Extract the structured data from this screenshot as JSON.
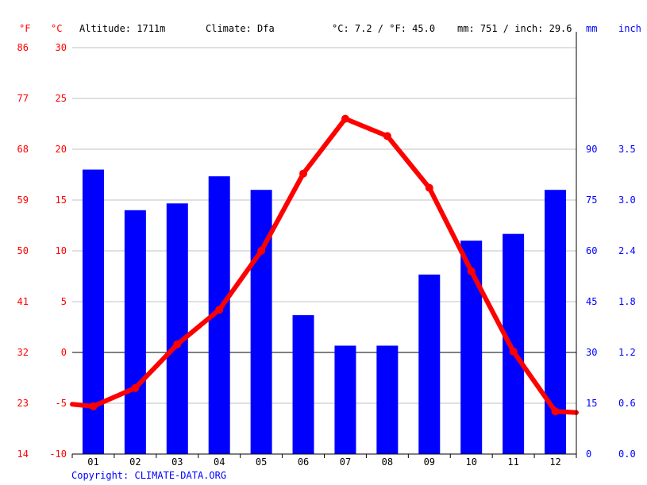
{
  "header": {
    "unit_f": "°F",
    "unit_c": "°C",
    "altitude": "Altitude: 1711m",
    "climate": "Climate: Dfa",
    "temp_avg": "°C: 7.2 / °F: 45.0",
    "precip_total": "mm: 751 / inch: 29.6",
    "unit_mm": "mm",
    "unit_inch": "inch"
  },
  "footer": {
    "copyright": "Copyright: CLIMATE-DATA.ORG"
  },
  "colors": {
    "temperature": "#ff0000",
    "precipitation": "#0000ff",
    "grid": "#c0c0c0",
    "zero_line": "#000000"
  },
  "chart_data": {
    "type": "bar",
    "categories": [
      "01",
      "02",
      "03",
      "04",
      "05",
      "06",
      "07",
      "08",
      "09",
      "10",
      "11",
      "12"
    ],
    "series": [
      {
        "type": "bar",
        "axis": "right",
        "unit": "mm",
        "values": [
          84,
          72,
          74,
          82,
          78,
          41,
          32,
          32,
          53,
          63,
          65,
          78
        ]
      },
      {
        "type": "line",
        "axis": "left",
        "unit": "°C",
        "values": [
          -5.3,
          -3.5,
          0.8,
          4.2,
          10.0,
          17.6,
          23.0,
          21.3,
          16.2,
          8.0,
          0.1,
          -5.8
        ]
      }
    ],
    "y_left": {
      "celsius_ticks": [
        "30",
        "25",
        "20",
        "15",
        "10",
        "5",
        "0",
        "-5",
        "-10"
      ],
      "fahrenheit_ticks": [
        "86",
        "77",
        "68",
        "59",
        "50",
        "41",
        "32",
        "23",
        "14"
      ],
      "ylim": [
        -10,
        30
      ]
    },
    "y_right": {
      "mm_ticks": [
        "90",
        "75",
        "60",
        "45",
        "30",
        "15",
        "0"
      ],
      "inch_ticks": [
        "3.5",
        "3.0",
        "2.4",
        "1.8",
        "1.2",
        "0.6",
        "0.0"
      ],
      "ylim": [
        0,
        120
      ]
    },
    "grid": true
  }
}
